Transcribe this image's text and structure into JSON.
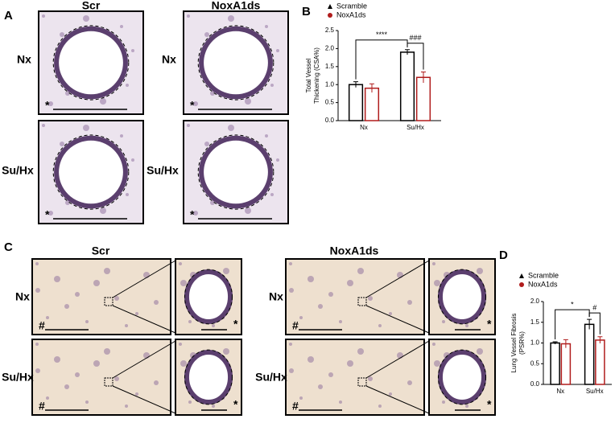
{
  "panel_a": {
    "label": "A",
    "columns": [
      "Scr",
      "NoxA1ds"
    ],
    "rows": [
      "Nx",
      "Su/Hx"
    ],
    "marker": "*"
  },
  "panel_c": {
    "label": "C",
    "columns": [
      "Scr",
      "NoxA1ds"
    ],
    "rows": [
      "Nx",
      "Su/Hx"
    ],
    "marker": "#",
    "inset_marker": "*"
  },
  "chart_data": [
    {
      "type": "bar",
      "panel": "B",
      "ylabel": [
        "Total Vessel",
        "Thickening (CSA%)"
      ],
      "categories": [
        "Nx",
        "Su/Hx"
      ],
      "series": [
        {
          "name": "Scramble",
          "color": "#000000",
          "values": [
            1.0,
            1.9
          ],
          "errors": [
            0.08,
            0.07
          ]
        },
        {
          "name": "NoxA1ds",
          "color": "#b01c1c",
          "values": [
            0.9,
            1.2
          ],
          "errors": [
            0.12,
            0.15
          ]
        }
      ],
      "ylim": [
        0,
        2.5
      ],
      "yticks": [
        {
          "value": 0,
          "label": "0.0"
        },
        0.5,
        {
          "value": 1,
          "label": "1.0"
        },
        1.5,
        {
          "value": 2,
          "label": "2.0"
        },
        2.5
      ],
      "annotations": [
        "****",
        "###"
      ]
    },
    {
      "type": "bar",
      "panel": "D",
      "ylabel": [
        "Lung Vessel Fibrosis",
        "(PSR%)"
      ],
      "categories": [
        "Nx",
        "Su/Hx"
      ],
      "series": [
        {
          "name": "Scramble",
          "color": "#000000",
          "values": [
            1.0,
            1.45
          ],
          "errors": [
            0.03,
            0.12
          ]
        },
        {
          "name": "NoxA1ds",
          "color": "#b01c1c",
          "values": [
            0.98,
            1.07
          ],
          "errors": [
            0.1,
            0.08
          ]
        }
      ],
      "ylim": [
        0,
        2
      ],
      "yticks": [
        {
          "value": 0,
          "label": "0.0"
        },
        0.5,
        {
          "value": 1,
          "label": "1.0"
        },
        1.5,
        {
          "value": 2,
          "label": "2.0"
        }
      ],
      "annotations": [
        "*",
        "#"
      ]
    }
  ]
}
